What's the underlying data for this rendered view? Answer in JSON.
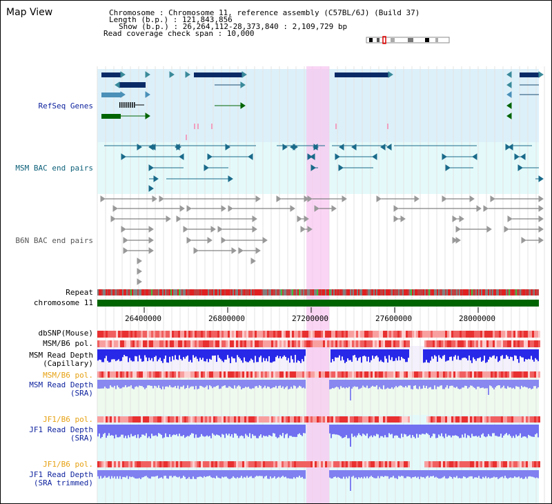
{
  "header": {
    "title": "Map View",
    "info_lines": [
      "Chromosome     : Chromosome 11, reference assembly (C57BL/6J) (Build 37)",
      "Length (b.p.) : 121,843,856",
      "Show (b.p.) : 26,264,112-28,373,840 : 2,109,729 bp",
      "Read coverage check span : 10,000"
    ]
  },
  "tracks": {
    "refseq": "RefSeq Genes",
    "msm_bac": "MSM BAC end pairs",
    "b6n_bac": "B6N BAC end pairs",
    "repeat": "Repeat",
    "chromosome": "chromosome 11",
    "dbsnp": "dbSNP(Mouse)",
    "msm_b6_pol": "MSM/B6 pol.",
    "msm_depth_cap_1": "MSM Read Depth",
    "msm_depth_cap_2": "(Capillary)",
    "msm_b6_pol_2": "MSM/B6 pol.",
    "msm_depth_sra_1": "MSM Read Depth",
    "msm_depth_sra_2": "(SRA)",
    "jf1_b6_pol": "JF1/B6 pol.",
    "jf1_depth_sra_1": "JF1 Read Depth",
    "jf1_depth_sra_2": "(SRA)",
    "jf1_b6_pol_2": "JF1/B6 pol.",
    "jf1_depth_trim_1": "JF1 Read Depth",
    "jf1_depth_trim_2": "(SRA trimmed)"
  },
  "ruler": {
    "ticks": [
      "26400000",
      "26800000",
      "27200000",
      "27600000",
      "28000000"
    ]
  },
  "colors": {
    "refseq_bg": "#dcf0fa",
    "msm_bg": "#e4fafa",
    "highlight": "#f8c8f0",
    "gene_dark": "#0a2a66",
    "chromosome_green": "#006400",
    "depth_blue": "#3030f0",
    "depth_light": "#8888f0",
    "pol_red": "#f07070"
  }
}
